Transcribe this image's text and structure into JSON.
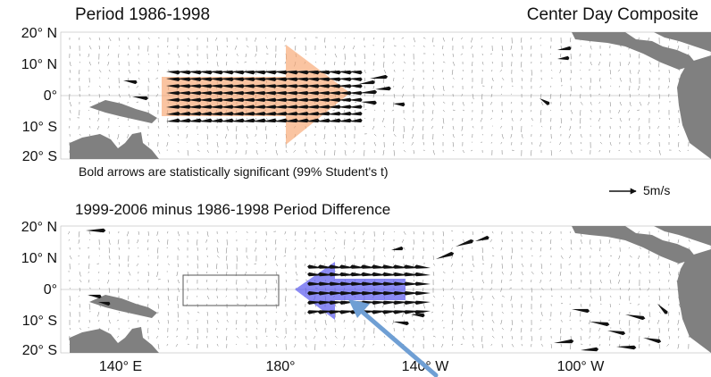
{
  "top_panel": {
    "title": "Period  1986-1998",
    "corner_label": "Center Day Composite",
    "lat_labels": [
      "20° N",
      "10° N",
      "0°",
      "10° S",
      "20° S"
    ]
  },
  "significance_note": "Bold arrows are statistically significant (99% Student's t)",
  "scale_label": "5m/s",
  "bottom_panel": {
    "title": "1999-2006 minus 1986-1998 Period Difference",
    "lat_labels": [
      "20° N",
      "10° N",
      "0°",
      "10° S",
      "20° S"
    ],
    "lon_labels": [
      "140° E",
      "180°",
      "140° W",
      "100° W"
    ]
  },
  "colors": {
    "land": "#808080",
    "composite_arrow": "#f7a56e",
    "difference_arrow": "#5a5af0",
    "pointer_arrow": "#6f9fd4"
  }
}
